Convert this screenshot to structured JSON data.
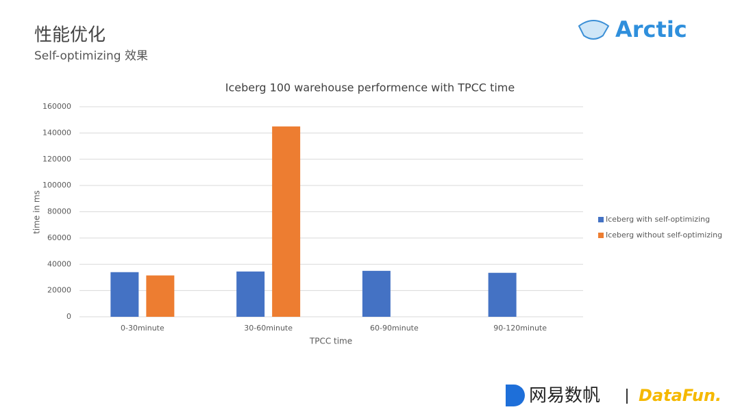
{
  "header": {
    "title": "性能优化",
    "subtitle": "Self-optimizing 效果",
    "logo": "Arctic"
  },
  "footer": {
    "brand": "网易数帆",
    "partner": "DataFun."
  },
  "chart_data": {
    "type": "bar",
    "title": "Iceberg 100 warehouse performence with TPCC time",
    "x_label": "TPCC time",
    "y_label": "time in ms",
    "categories": [
      "0-30minute",
      "30-60minute",
      "60-90minute",
      "90-120minute"
    ],
    "series": [
      {
        "name": "Iceberg with self-optimizing",
        "color": "#4472c4",
        "values": [
          34000,
          34500,
          35000,
          33500
        ]
      },
      {
        "name": "Iceberg without self-optimizing",
        "color": "#ed7d31",
        "values": [
          31500,
          145000,
          null,
          null
        ]
      }
    ],
    "ylim": [
      0,
      160000
    ],
    "yticks": [
      0,
      20000,
      40000,
      60000,
      80000,
      100000,
      120000,
      140000,
      160000
    ],
    "grid": true,
    "legend": "right"
  }
}
